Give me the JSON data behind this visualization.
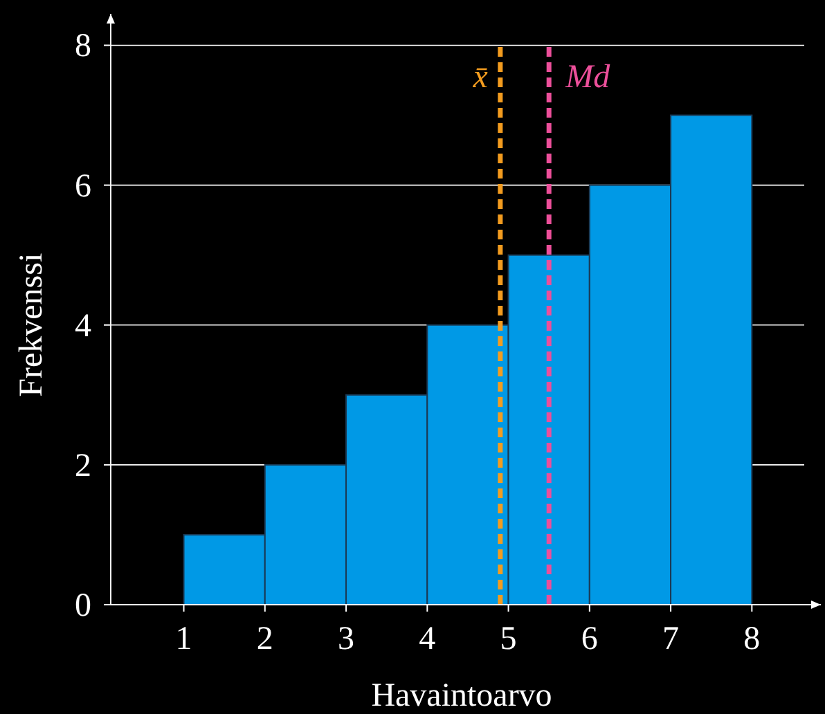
{
  "chart_data": {
    "type": "histogram",
    "xlabel": "Havaintoarvo",
    "ylabel": "Frekvenssi",
    "bins": [
      1,
      2,
      3,
      4,
      5,
      6,
      7,
      8
    ],
    "values": [
      1,
      2,
      3,
      4,
      5,
      6,
      7
    ],
    "color": "#0099e6",
    "xlim": [
      0.1,
      8.85
    ],
    "ylim": [
      0,
      8.45
    ],
    "xticks": [
      1,
      2,
      3,
      4,
      5,
      6,
      7,
      8
    ],
    "yticks": [
      0,
      2,
      4,
      6,
      8
    ],
    "grid": "y",
    "ref_lines": [
      {
        "axis": "x",
        "value": 4.9,
        "label": "x̄",
        "color": "#f39c1f",
        "line_style": "dashed"
      },
      {
        "axis": "x",
        "value": 5.5,
        "label": "Md",
        "color": "#ec4f9a",
        "line_style": "dashed"
      }
    ]
  }
}
